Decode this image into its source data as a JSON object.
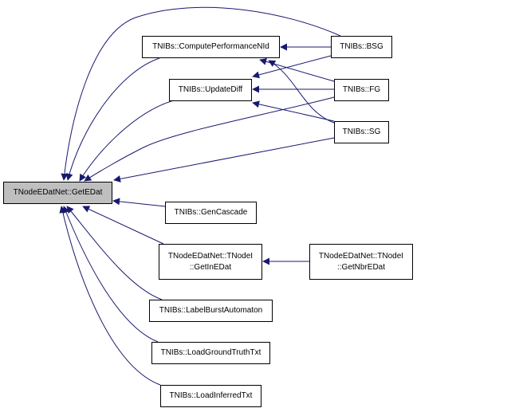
{
  "graph": {
    "edge_color": "#191970",
    "current_fill": "#bfbfbf",
    "nodes": {
      "getedat": {
        "label": "TNodeEDatNet::GetEDat",
        "current": true
      },
      "computeperf": {
        "label": "TNIBs::ComputePerformanceNId"
      },
      "updatediff": {
        "label": "TNIBs::UpdateDiff"
      },
      "bsg": {
        "label": "TNIBs::BSG"
      },
      "fg": {
        "label": "TNIBs::FG"
      },
      "sg": {
        "label": "TNIBs::SG"
      },
      "gencascade": {
        "label": "TNIBs::GenCascade"
      },
      "getinedat": {
        "label_line1": "TNodeEDatNet::TNodeI",
        "label_line2": "::GetInEDat"
      },
      "getnbredat": {
        "label_line1": "TNodeEDatNet::TNodeI",
        "label_line2": "::GetNbrEDat"
      },
      "labelburst": {
        "label": "TNIBs::LabelBurstAutomaton"
      },
      "loadgroundtruth": {
        "label": "TNIBs::LoadGroundTruthTxt"
      },
      "loadinferred": {
        "label": "TNIBs::LoadInferredTxt"
      }
    },
    "edges": [
      {
        "from": "bsg",
        "to": "getedat"
      },
      {
        "from": "computeperf",
        "to": "getedat"
      },
      {
        "from": "updatediff",
        "to": "getedat"
      },
      {
        "from": "fg",
        "to": "getedat"
      },
      {
        "from": "sg",
        "to": "getedat"
      },
      {
        "from": "gencascade",
        "to": "getedat"
      },
      {
        "from": "getinedat",
        "to": "getedat"
      },
      {
        "from": "labelburst",
        "to": "getedat"
      },
      {
        "from": "loadgroundtruth",
        "to": "getedat"
      },
      {
        "from": "loadinferred",
        "to": "getedat"
      },
      {
        "from": "bsg",
        "to": "computeperf"
      },
      {
        "from": "bsg",
        "to": "updatediff"
      },
      {
        "from": "fg",
        "to": "computeperf"
      },
      {
        "from": "fg",
        "to": "updatediff"
      },
      {
        "from": "sg",
        "to": "computeperf"
      },
      {
        "from": "sg",
        "to": "updatediff"
      },
      {
        "from": "getnbredat",
        "to": "getinedat"
      }
    ]
  }
}
